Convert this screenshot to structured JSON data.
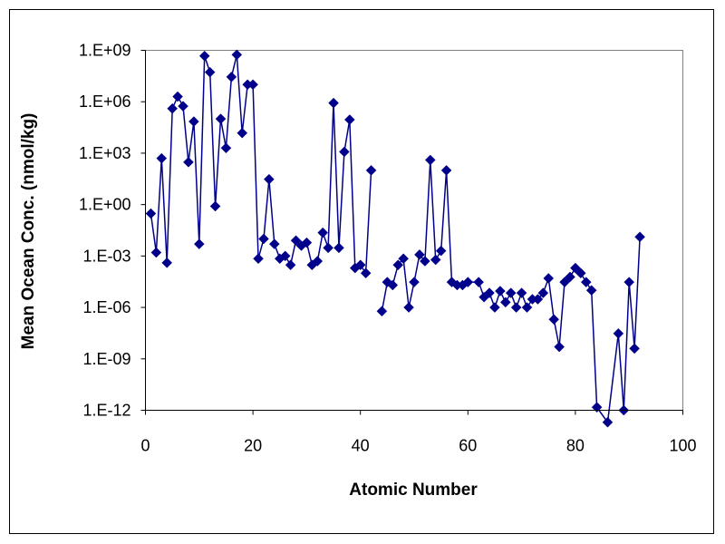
{
  "chart_data": {
    "type": "scatter",
    "title": "",
    "xlabel": "Atomic Number",
    "ylabel": "Mean Ocean Conc. (nmol/kg)",
    "xlim": [
      0,
      100
    ],
    "ylim": [
      1e-12,
      1000000000.0
    ],
    "y_scale": "log",
    "x_ticks": [
      0,
      20,
      40,
      60,
      80,
      100
    ],
    "x_tick_labels": [
      "0",
      "20",
      "40",
      "60",
      "80",
      "100"
    ],
    "y_ticks": [
      1e-12,
      1e-09,
      1e-06,
      0.001,
      1,
      1000.0,
      1000000.0,
      1000000000.0
    ],
    "y_tick_labels": [
      "1.E-12",
      "1.E-09",
      "1.E-06",
      "1.E-03",
      "1.E+00",
      "1.E+03",
      "1.E+06",
      "1.E+09"
    ],
    "grid": false,
    "legend": "none",
    "color": "#00008B",
    "series": [
      {
        "segments": [
          [
            [
              1,
              0.3
            ],
            [
              2,
              0.0016
            ],
            [
              3,
              500
            ],
            [
              4,
              0.0004
            ],
            [
              5,
              400000
            ],
            [
              6,
              2000000
            ],
            [
              7,
              550000
            ],
            [
              8,
              300
            ],
            [
              9,
              70000
            ],
            [
              10,
              0.005
            ],
            [
              11,
              470000000
            ],
            [
              12,
              53000000
            ],
            [
              13,
              0.8
            ],
            [
              14,
              100000
            ],
            [
              15,
              2000
            ],
            [
              16,
              28000000
            ],
            [
              17,
              550000000
            ],
            [
              18,
              15000
            ],
            [
              19,
              10000000
            ],
            [
              20,
              10000000
            ],
            [
              21,
              0.0007
            ],
            [
              22,
              0.01
            ],
            [
              23,
              30
            ],
            [
              24,
              0.005
            ],
            [
              25,
              0.0007
            ],
            [
              26,
              0.001
            ],
            [
              27,
              0.0003
            ],
            [
              28,
              0.008
            ],
            [
              29,
              0.004
            ],
            [
              30,
              0.006
            ],
            [
              31,
              0.0003
            ],
            [
              32,
              0.0005
            ],
            [
              33,
              0.023
            ],
            [
              34,
              0.003
            ],
            [
              35,
              840000
            ],
            [
              36,
              0.003
            ],
            [
              37,
              1200
            ],
            [
              38,
              90000
            ],
            [
              39,
              0.0002
            ],
            [
              40,
              0.0003
            ],
            [
              41,
              0.0001
            ],
            [
              42,
              100
            ]
          ],
          [
            [
              44,
              6e-07
            ],
            [
              45,
              3e-05
            ],
            [
              46,
              2e-05
            ],
            [
              47,
              0.0003
            ],
            [
              48,
              0.0007
            ],
            [
              49,
              1e-06
            ],
            [
              50,
              3e-05
            ],
            [
              51,
              0.0012
            ],
            [
              52,
              0.0005
            ],
            [
              53,
              400
            ],
            [
              54,
              0.0006
            ],
            [
              55,
              0.002
            ],
            [
              56,
              100
            ],
            [
              57,
              3e-05
            ],
            [
              58,
              2e-05
            ],
            [
              59,
              2e-05
            ],
            [
              60,
              3e-05
            ],
            [
              62,
              3e-05
            ],
            [
              63,
              4e-06
            ],
            [
              64,
              7e-06
            ],
            [
              65,
              1e-06
            ],
            [
              66,
              9e-06
            ],
            [
              67,
              2e-06
            ],
            [
              68,
              7e-06
            ],
            [
              69,
              1e-06
            ],
            [
              70,
              7e-06
            ],
            [
              71,
              1e-06
            ],
            [
              72,
              3e-06
            ],
            [
              73,
              3e-06
            ],
            [
              74,
              7e-06
            ],
            [
              75,
              5e-05
            ],
            [
              76,
              2e-07
            ],
            [
              77,
              5e-09
            ],
            [
              78,
              3e-05
            ],
            [
              79,
              6e-05
            ],
            [
              80,
              0.0002
            ],
            [
              81,
              0.0001
            ],
            [
              82,
              3e-05
            ],
            [
              83,
              1e-05
            ],
            [
              84,
              1.5e-12
            ],
            [
              86,
              2e-13
            ],
            [
              88,
              3e-08
            ],
            [
              89,
              1e-12
            ],
            [
              90,
              3e-05
            ],
            [
              91,
              4e-09
            ],
            [
              92,
              0.013
            ]
          ]
        ]
      }
    ]
  }
}
